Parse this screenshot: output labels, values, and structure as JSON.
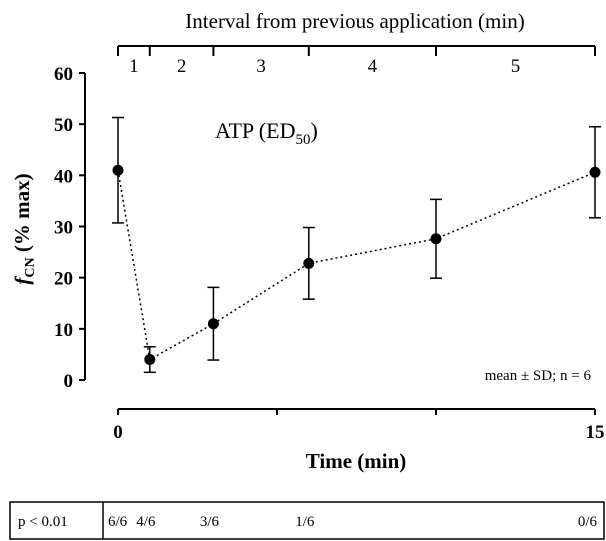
{
  "chart_data": {
    "type": "scatter",
    "connected": true,
    "line_style": "dotted",
    "title": "",
    "xlabel": "Time (min)",
    "ylabel_main": "f",
    "ylabel_sub": "CN",
    "ylabel_rest": " (% max)",
    "xlim": [
      0,
      15
    ],
    "ylim": [
      0,
      60
    ],
    "x_ticks": [
      0,
      5,
      10,
      15
    ],
    "x_tick_labels": [
      "0",
      "",
      "",
      "15"
    ],
    "y_ticks": [
      0,
      10,
      20,
      30,
      40,
      50,
      60
    ],
    "y_tick_labels": [
      "0",
      "10",
      "20",
      "30",
      "40",
      "50",
      "60"
    ],
    "grid": false,
    "series": [
      {
        "x": [
          0,
          1,
          3,
          6,
          10,
          15
        ],
        "y": [
          41,
          4,
          11,
          22.8,
          27.6,
          40.6
        ],
        "err": [
          10.3,
          2.5,
          7.1,
          7.0,
          7.7,
          8.9
        ]
      }
    ],
    "annotations": {
      "agent_main": "ATP (ED",
      "agent_sub": "50",
      "agent_end": ")",
      "stats": "mean ± SD; n = 6"
    },
    "interval_axis": {
      "title": "Interval from previous application (min)",
      "boundaries": [
        0,
        1,
        3,
        6,
        10,
        15
      ],
      "labels": [
        "1",
        "2",
        "3",
        "4",
        "5"
      ]
    },
    "significance_table": {
      "label": "p < 0.01",
      "entries": [
        {
          "x": 0,
          "text": "6/6"
        },
        {
          "x": 1,
          "text": "4/6"
        },
        {
          "x": 3,
          "text": "3/6"
        },
        {
          "x": 6,
          "text": "1/6"
        },
        {
          "x": 15,
          "text": "0/6"
        }
      ]
    }
  }
}
